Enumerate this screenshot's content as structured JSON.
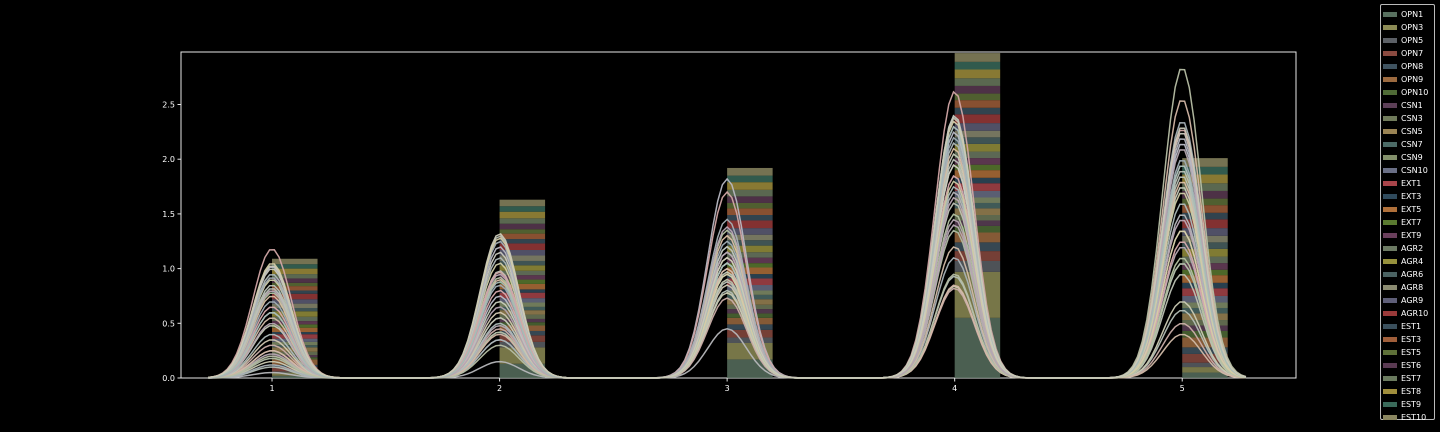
{
  "chart_data": {
    "type": "histogram-kde",
    "x_ticks": [
      "1",
      "2",
      "3",
      "4",
      "5"
    ],
    "y_ticks": [
      "0.0",
      "0.5",
      "1.0",
      "1.5",
      "2.0",
      "2.5"
    ],
    "xlim": [
      0.6,
      5.5
    ],
    "ylim": [
      0,
      2.98
    ],
    "grid": false,
    "legend_position": "right",
    "series": [
      {
        "name": "OPN1",
        "color": "#58705f",
        "bars": [
          0.02,
          0.13,
          0.17,
          0.55,
          0.05
        ],
        "peaks": [
          0.1,
          0.35,
          0.8,
          0.93,
          0.62
        ]
      },
      {
        "name": "OPN3",
        "color": "#8c8b55",
        "bars": [
          0.03,
          0.15,
          0.15,
          0.42,
          0.05
        ],
        "peaks": [
          0.15,
          0.42,
          0.78,
          0.84,
          0.7
        ]
      },
      {
        "name": "OPN5",
        "color": "#5c6066",
        "bars": [
          0.01,
          0.05,
          0.05,
          0.1,
          0.04
        ],
        "peaks": [
          0.05,
          0.15,
          0.45,
          1.7,
          1.5
        ]
      },
      {
        "name": "OPN7",
        "color": "#8a4a40",
        "bars": [
          0.04,
          0.06,
          0.07,
          0.09,
          0.08
        ],
        "peaks": [
          0.3,
          0.45,
          0.73,
          0.82,
          0.5
        ]
      },
      {
        "name": "OPN8",
        "color": "#3f5360",
        "bars": [
          0.02,
          0.04,
          0.05,
          0.08,
          0.06
        ],
        "peaks": [
          0.12,
          0.35,
          0.95,
          1.1,
          1.05
        ]
      },
      {
        "name": "OPN9",
        "color": "#9c6a3f",
        "bars": [
          0.05,
          0.05,
          0.06,
          0.09,
          0.09
        ],
        "peaks": [
          0.55,
          0.55,
          1.1,
          1.2,
          0.4
        ]
      },
      {
        "name": "OPN10",
        "color": "#4f6b36",
        "bars": [
          0.02,
          0.03,
          0.04,
          0.06,
          0.06
        ],
        "peaks": [
          0.18,
          0.42,
          1.05,
          1.35,
          1.05
        ]
      },
      {
        "name": "CSN1",
        "color": "#5c3f57",
        "bars": [
          0.02,
          0.03,
          0.04,
          0.05,
          0.05
        ],
        "peaks": [
          0.22,
          0.48,
          0.9,
          1.4,
          1.2
        ]
      },
      {
        "name": "CSN3",
        "color": "#6f7a5a",
        "bars": [
          0.03,
          0.04,
          0.04,
          0.05,
          0.05
        ],
        "peaks": [
          0.25,
          0.55,
          1.0,
          1.6,
          0.95
        ]
      },
      {
        "name": "CSN5",
        "color": "#9a8454",
        "bars": [
          0.04,
          0.04,
          0.05,
          0.06,
          0.06
        ],
        "peaks": [
          0.35,
          0.6,
          0.85,
          1.95,
          1.35
        ]
      },
      {
        "name": "CSN7",
        "color": "#4b6a66",
        "bars": [
          0.02,
          0.03,
          0.04,
          0.05,
          0.05
        ],
        "peaks": [
          0.4,
          0.5,
          1.2,
          1.75,
          1.6
        ]
      },
      {
        "name": "CSN9",
        "color": "#828f6a",
        "bars": [
          0.03,
          0.04,
          0.04,
          0.05,
          0.05
        ],
        "peaks": [
          0.48,
          0.7,
          0.97,
          2.05,
          1.75
        ]
      },
      {
        "name": "CSN10",
        "color": "#6a6f86",
        "bars": [
          0.03,
          0.04,
          0.05,
          0.06,
          0.06
        ],
        "peaks": [
          0.6,
          0.75,
          1.05,
          2.25,
          2.15
        ]
      },
      {
        "name": "EXT1",
        "color": "#a8444a",
        "bars": [
          0.04,
          0.05,
          0.06,
          0.07,
          0.07
        ],
        "peaks": [
          0.65,
          0.8,
          1.15,
          1.85,
          1.25
        ]
      },
      {
        "name": "EXT3",
        "color": "#2f4a5c",
        "bars": [
          0.02,
          0.03,
          0.04,
          0.05,
          0.05
        ],
        "peaks": [
          0.7,
          0.85,
          1.25,
          2.2,
          2.0
        ]
      },
      {
        "name": "EXT5",
        "color": "#b0703a",
        "bars": [
          0.04,
          0.05,
          0.06,
          0.07,
          0.07
        ],
        "peaks": [
          0.75,
          0.9,
          1.3,
          2.1,
          1.8
        ]
      },
      {
        "name": "EXT7",
        "color": "#5a7a30",
        "bars": [
          0.03,
          0.04,
          0.04,
          0.05,
          0.05
        ],
        "peaks": [
          0.78,
          0.92,
          1.35,
          1.5,
          1.1
        ]
      },
      {
        "name": "EXT9",
        "color": "#6a3f5c",
        "bars": [
          0.03,
          0.04,
          0.05,
          0.06,
          0.06
        ],
        "peaks": [
          0.8,
          0.95,
          1.38,
          1.65,
          1.45
        ]
      },
      {
        "name": "AGR2",
        "color": "#6c7a63",
        "bars": [
          0.04,
          0.04,
          0.05,
          0.06,
          0.06
        ],
        "peaks": [
          0.82,
          0.98,
          1.2,
          2.0,
          1.9
        ]
      },
      {
        "name": "AGR4",
        "color": "#96913c",
        "bars": [
          0.05,
          0.05,
          0.06,
          0.07,
          0.07
        ],
        "peaks": [
          0.9,
          1.05,
          1.1,
          1.8,
          1.7
        ]
      },
      {
        "name": "AGR6",
        "color": "#4a6262",
        "bars": [
          0.03,
          0.04,
          0.05,
          0.06,
          0.06
        ],
        "peaks": [
          0.95,
          1.1,
          1.15,
          2.15,
          1.95
        ]
      },
      {
        "name": "AGR8",
        "color": "#8a8a70",
        "bars": [
          0.04,
          0.05,
          0.05,
          0.06,
          0.06
        ],
        "peaks": [
          1.0,
          1.15,
          1.05,
          1.95,
          2.25
        ]
      },
      {
        "name": "AGR9",
        "color": "#5e5e78",
        "bars": [
          0.04,
          0.05,
          0.06,
          0.07,
          0.07
        ],
        "peaks": [
          1.02,
          1.2,
          1.82,
          2.3,
          2.2
        ]
      },
      {
        "name": "AGR10",
        "color": "#9a3a3a",
        "bars": [
          0.05,
          0.06,
          0.07,
          0.08,
          0.08
        ],
        "peaks": [
          1.18,
          0.97,
          1.7,
          2.62,
          2.28
        ]
      },
      {
        "name": "EST1",
        "color": "#3a4f5c",
        "bars": [
          0.03,
          0.04,
          0.05,
          0.06,
          0.06
        ],
        "peaks": [
          0.92,
          1.25,
          1.45,
          2.4,
          2.35
        ]
      },
      {
        "name": "EST3",
        "color": "#a05e3a",
        "bars": [
          0.04,
          0.05,
          0.06,
          0.07,
          0.07
        ],
        "peaks": [
          0.25,
          0.4,
          1.0,
          0.85,
          2.55
        ]
      },
      {
        "name": "EST5",
        "color": "#5e7038",
        "bars": [
          0.03,
          0.04,
          0.05,
          0.06,
          0.06
        ],
        "peaks": [
          0.2,
          0.3,
          0.9,
          0.95,
          2.84
        ]
      },
      {
        "name": "EST6",
        "color": "#5a3a52",
        "bars": [
          0.04,
          0.05,
          0.06,
          0.07,
          0.07
        ],
        "peaks": [
          0.5,
          0.65,
          1.15,
          1.45,
          2.1
        ]
      },
      {
        "name": "EST7",
        "color": "#6a7a5e",
        "bars": [
          0.04,
          0.05,
          0.06,
          0.07,
          0.07
        ],
        "peaks": [
          0.85,
          1.3,
          0.88,
          2.4,
          1.85
        ]
      },
      {
        "name": "EST8",
        "color": "#a08e3c",
        "bars": [
          0.05,
          0.06,
          0.07,
          0.08,
          0.08
        ],
        "peaks": [
          1.05,
          1.28,
          0.95,
          2.35,
          1.35
        ]
      },
      {
        "name": "EST9",
        "color": "#3a6a5a",
        "bars": [
          0.04,
          0.05,
          0.06,
          0.07,
          0.07
        ],
        "peaks": [
          0.6,
          0.88,
          1.05,
          2.3,
          1.95
        ]
      },
      {
        "name": "EST10",
        "color": "#8a8660",
        "bars": [
          0.05,
          0.06,
          0.07,
          0.08,
          0.08
        ],
        "peaks": [
          1.03,
          1.32,
          1.1,
          2.38,
          2.3
        ]
      }
    ]
  }
}
